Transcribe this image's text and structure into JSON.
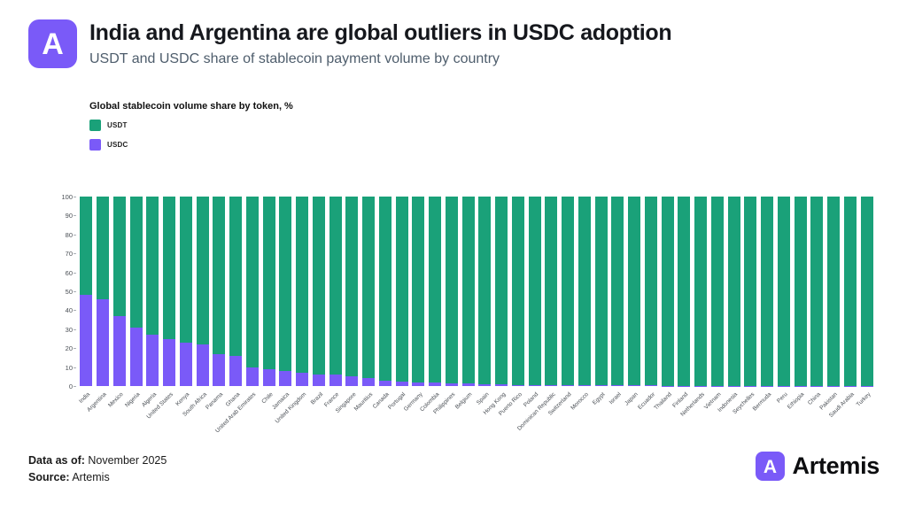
{
  "header": {
    "title": "India and Argentina are global outliers in USDC adoption",
    "subtitle": "USDT and USDC share of stablecoin payment volume by country"
  },
  "legend": {
    "title": "Global stablecoin volume share by token, %",
    "items": [
      {
        "label": "USDT",
        "color": "#1aa179"
      },
      {
        "label": "USDC",
        "color": "#7a5af8"
      }
    ]
  },
  "chart_data": {
    "type": "bar",
    "stacked": true,
    "title": "Global stablecoin volume share by token, %",
    "xlabel": "",
    "ylabel": "",
    "ylim": [
      0,
      100
    ],
    "yticks": [
      0,
      10,
      20,
      30,
      40,
      50,
      60,
      70,
      80,
      90,
      100
    ],
    "grid": false,
    "legend_position": "top-left",
    "colors": {
      "USDT": "#1aa179",
      "USDC": "#7a5af8"
    },
    "categories": [
      "India",
      "Argentina",
      "Mexico",
      "Nigeria",
      "Algeria",
      "United States",
      "Kenya",
      "South Africa",
      "Panama",
      "Ghana",
      "United Arab Emirates",
      "Chile",
      "Jamaica",
      "United Kingdom",
      "Brazil",
      "France",
      "Singapore",
      "Mauritius",
      "Canada",
      "Portugal",
      "Germany",
      "Colombia",
      "Philippines",
      "Belgium",
      "Spain",
      "Hong Kong",
      "Puerto Rico",
      "Poland",
      "Dominican Republic",
      "Switzerland",
      "Morocco",
      "Egypt",
      "Israel",
      "Japan",
      "Ecuador",
      "Thailand",
      "Finland",
      "Netherlands",
      "Vietnam",
      "Indonesia",
      "Seychelles",
      "Bermuda",
      "Peru",
      "Ethiopia",
      "China",
      "Pakistan",
      "Saudi Arabia",
      "Turkey"
    ],
    "series": [
      {
        "name": "USDC",
        "values": [
          48,
          46,
          37,
          31,
          27,
          25,
          23,
          22,
          17,
          16,
          10,
          9,
          8,
          7,
          6,
          6,
          5,
          4,
          3,
          2.5,
          2,
          2,
          1.5,
          1.2,
          1,
          0.8,
          0.7,
          0.6,
          0.5,
          0.5,
          0.4,
          0.4,
          0.3,
          0.3,
          0.3,
          0.2,
          0.2,
          0.2,
          0.2,
          0.1,
          0.1,
          0.1,
          0.1,
          0.1,
          0.1,
          0.1,
          0.05,
          0.05
        ]
      },
      {
        "name": "USDT",
        "values": [
          52,
          54,
          63,
          69,
          73,
          75,
          77,
          78,
          83,
          84,
          90,
          91,
          92,
          93,
          94,
          94,
          95,
          96,
          97,
          97.5,
          98,
          98,
          98.5,
          98.8,
          99,
          99.2,
          99.3,
          99.4,
          99.5,
          99.5,
          99.6,
          99.6,
          99.7,
          99.7,
          99.7,
          99.8,
          99.8,
          99.8,
          99.8,
          99.9,
          99.9,
          99.9,
          99.9,
          99.9,
          99.9,
          99.9,
          99.95,
          99.95
        ]
      }
    ]
  },
  "footer": {
    "data_as_of_label": "Data as of:",
    "data_as_of_value": " November 2025",
    "source_label": "Source:",
    "source_value": " Artemis",
    "brand_name": "Artemis"
  },
  "icons": {
    "logo_letter": "A"
  }
}
